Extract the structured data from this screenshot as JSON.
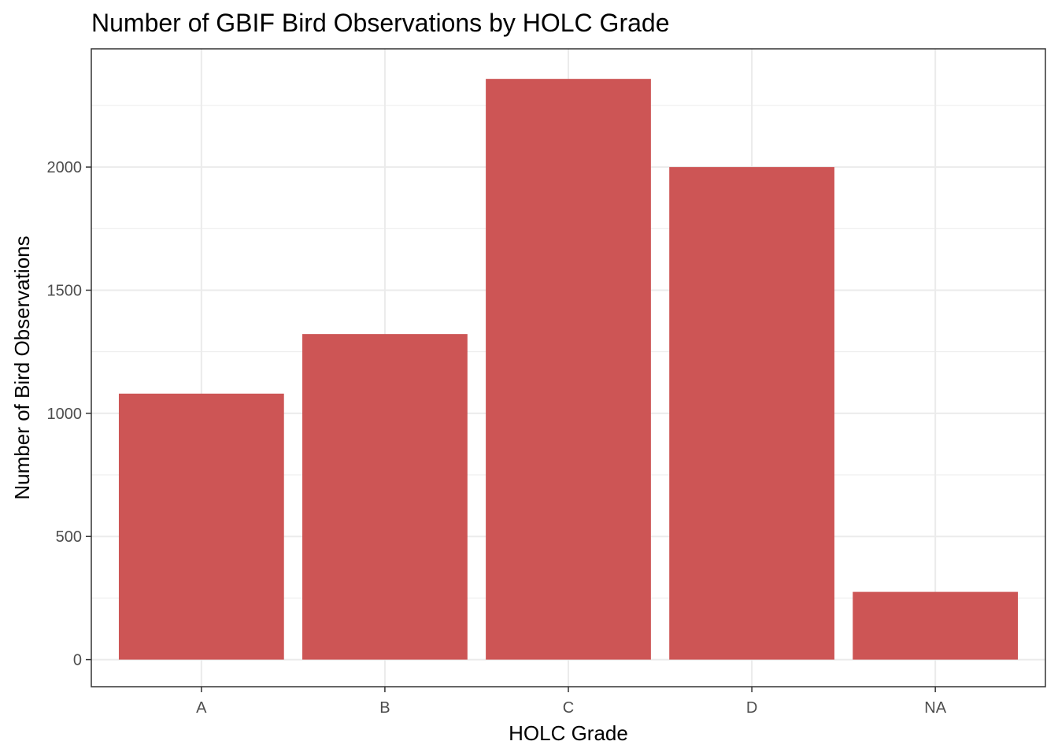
{
  "chart_data": {
    "type": "bar",
    "title": "Number of GBIF Bird Observations by HOLC Grade",
    "xlabel": "HOLC Grade",
    "ylabel": "Number of Bird Observations",
    "categories": [
      "A",
      "B",
      "C",
      "D",
      "NA"
    ],
    "values": [
      1080,
      1322,
      2358,
      2000,
      275
    ],
    "ylim": [
      -110,
      2480
    ],
    "yticks": [
      0,
      500,
      1000,
      1500,
      2000
    ],
    "ytick_labels": [
      "0",
      "500",
      "1000",
      "1500",
      "2000"
    ],
    "grid": true,
    "legend": "none",
    "bar_color": "#cd5555",
    "panel_border_color": "#333333",
    "grid_color": "#ebebeb"
  }
}
